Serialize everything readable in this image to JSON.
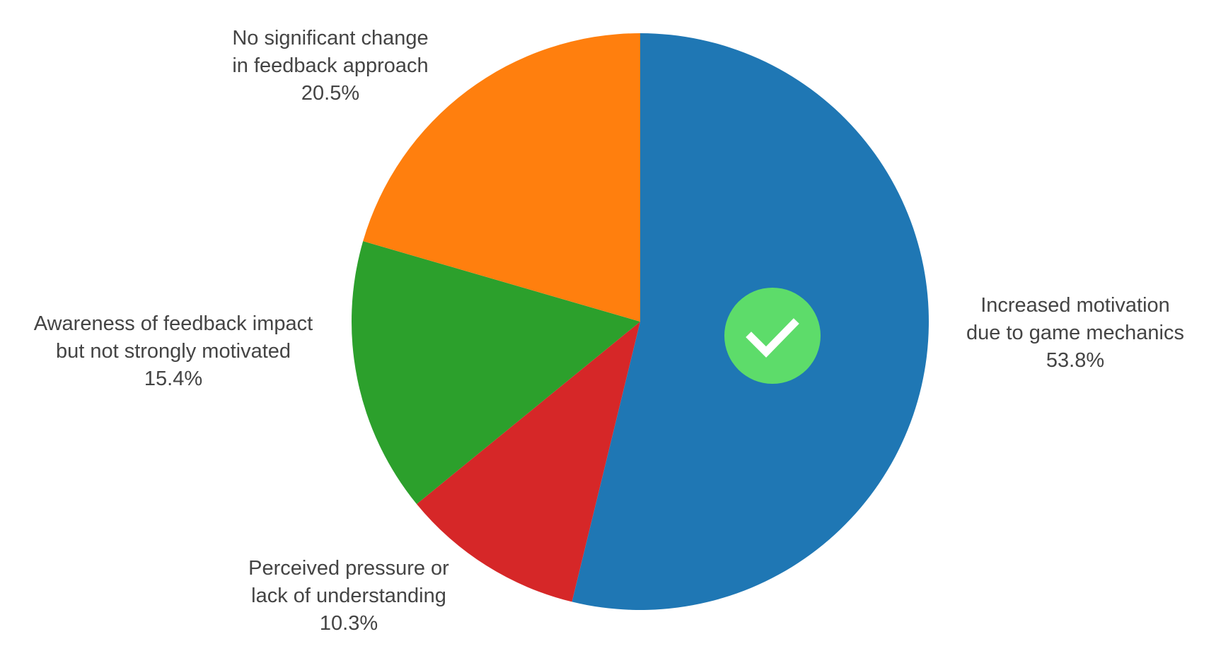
{
  "chart_data": {
    "type": "pie",
    "slices": [
      {
        "label_lines": [
          "Increased motivation",
          "due to game mechanics"
        ],
        "percent_label": "53.8%",
        "value": 53.8,
        "color": "#1f77b4"
      },
      {
        "label_lines": [
          "Perceived pressure or",
          "lack of understanding"
        ],
        "percent_label": "10.3%",
        "value": 10.3,
        "color": "#d62728"
      },
      {
        "label_lines": [
          "Awareness of feedback impact",
          "but not strongly motivated"
        ],
        "percent_label": "15.4%",
        "value": 15.4,
        "color": "#2ca02c"
      },
      {
        "label_lines": [
          "No significant change",
          "in feedback approach"
        ],
        "percent_label": "20.5%",
        "value": 20.5,
        "color": "#ff7f0e"
      }
    ],
    "direction": "clockwise",
    "start_angle": "top",
    "label_placement": "outside",
    "highlight": {
      "slice_index": 0,
      "icon": "check-circle-icon",
      "color": "#5ddc6a"
    }
  }
}
